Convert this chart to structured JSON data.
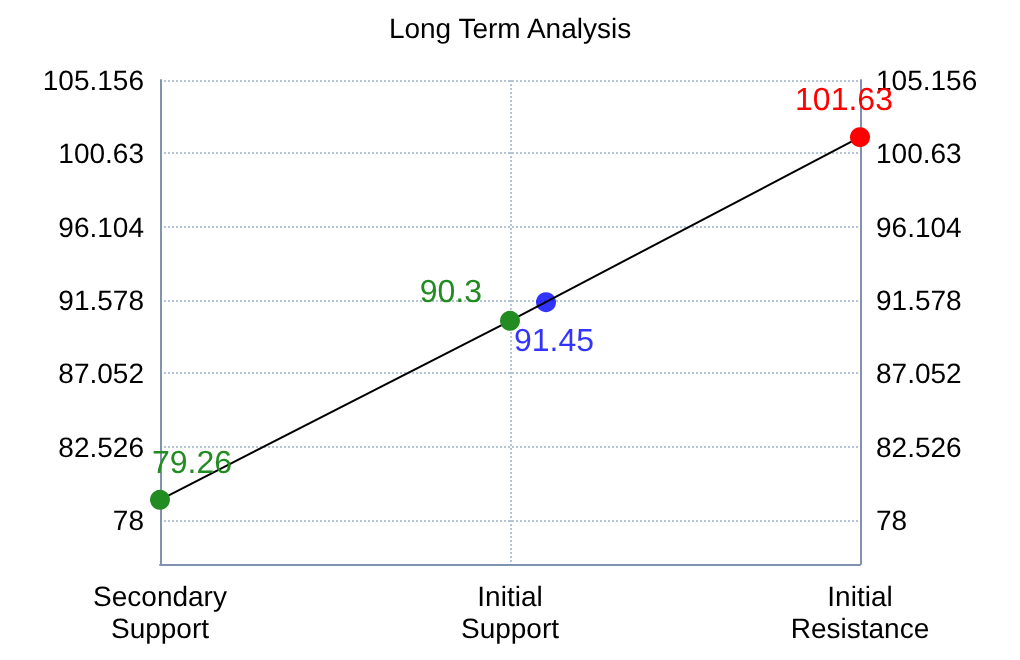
{
  "chart_data": {
    "type": "line",
    "title": "Long Term Analysis",
    "categories": [
      "Secondary\nSupport",
      "Initial\nSupport",
      "Initial\nResistance"
    ],
    "series": [
      {
        "color": "#000000",
        "colors": [
          "#228b22",
          "#228b22",
          "#ff0000"
        ],
        "values": [
          79.26,
          90.3,
          101.63
        ]
      },
      {
        "type": "scatter",
        "color": "#0000ff",
        "x": [
          "Initial\nSupport"
        ],
        "values": [
          91.45
        ]
      }
    ],
    "ylim": [
      75.3,
      105.156
    ],
    "yticks": [
      78,
      82.526,
      87.052,
      91.578,
      96.104,
      100.63,
      105.156
    ],
    "y2lim": [
      75.3,
      105.156
    ],
    "y2ticks": [
      78,
      82.526,
      87.052,
      91.578,
      96.104,
      100.63,
      105.156
    ],
    "grid": true,
    "data_labels": true,
    "marker": "circle"
  }
}
